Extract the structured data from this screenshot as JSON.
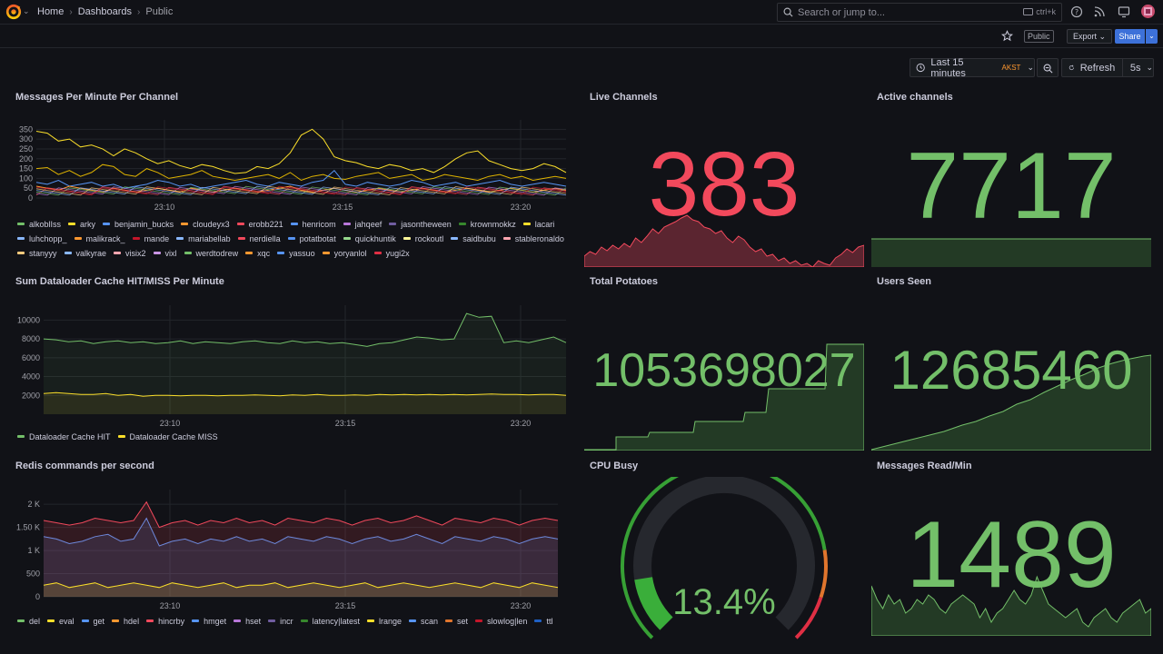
{
  "breadcrumb": [
    "Home",
    "Dashboards",
    "Public"
  ],
  "search": {
    "placeholder": "Search or jump to...",
    "shortcut": "ctrl+k"
  },
  "toolbar": {
    "public_tag": "Public",
    "export_label": "Export",
    "share_label": "Share"
  },
  "time": {
    "range": "Last 15 minutes",
    "timezone": "AKST",
    "refresh_label": "Refresh",
    "interval": "5s"
  },
  "colors": {
    "red": "#f2495c",
    "green": "#73bf69",
    "yellow": "#fade2a",
    "blue": "#5794f2",
    "bg": "#111217"
  },
  "panels": {
    "messages": {
      "title": "Messages Per Minute Per Channel",
      "legend": [
        "alkoblIss",
        "arky",
        "benjamin_bucks",
        "cloudeyx3",
        "erobb221",
        "henricom",
        "jahqeef",
        "jasontheween",
        "krownmokkz",
        "lacari",
        "luhchopp_",
        "malikrack_",
        "mande",
        "mariabellab",
        "nerdiella",
        "potatbotat",
        "quickhuntik",
        "rockoutl",
        "saidbubu",
        "stableronaldo",
        "stanyyy",
        "valkyrae",
        "visix2",
        "vixl",
        "werdtodrew",
        "xqc",
        "yassuo",
        "yoryanlol",
        "yugi2x"
      ],
      "legend_colors": [
        "#73bf69",
        "#fade2a",
        "#5794f2",
        "#ff9830",
        "#f2495c",
        "#5794f2",
        "#b877d9",
        "#705da0",
        "#37872d",
        "#fade2a",
        "#8ab8ff",
        "#ff9830",
        "#c4162a",
        "#8ab8ff",
        "#f2495c",
        "#5794f2",
        "#96d98d",
        "#fff899",
        "#8ab8ff",
        "#ffa6b0",
        "#ffcb7d",
        "#8ab8ff",
        "#ffa6b0",
        "#ca95e5",
        "#73bf69",
        "#ff9830",
        "#5794f2",
        "#ff9830",
        "#e02f44"
      ]
    },
    "dataloader": {
      "title": "Sum Dataloader Cache HIT/MISS Per Minute",
      "legend": [
        "Dataloader Cache HIT",
        "Dataloader Cache MISS"
      ]
    },
    "redis": {
      "title": "Redis commands per second",
      "legend": [
        "del",
        "eval",
        "get",
        "hdel",
        "hincrby",
        "hmget",
        "hset",
        "incr",
        "latency|latest",
        "lrange",
        "scan",
        "set",
        "slowlog|len",
        "ttl"
      ],
      "legend_colors": [
        "#73bf69",
        "#fade2a",
        "#5794f2",
        "#ff9830",
        "#f2495c",
        "#5794f2",
        "#b877d9",
        "#705da0",
        "#37872d",
        "#fade2a",
        "#5794f2",
        "#e0752d",
        "#c4162a",
        "#1f60c4"
      ]
    },
    "live": {
      "title": "Live Channels",
      "value": "383"
    },
    "active": {
      "title": "Active channels",
      "value": "7717"
    },
    "potatoes": {
      "title": "Total Potatoes",
      "value": "1053698027"
    },
    "users": {
      "title": "Users Seen",
      "value": "12685460"
    },
    "cpu": {
      "title": "CPU Busy",
      "value": "13.4%",
      "fraction": 0.134
    },
    "msgread": {
      "title": "Messages Read/Min",
      "value": "1489"
    }
  },
  "chart_data": [
    {
      "type": "line",
      "title": "Messages Per Minute Per Channel",
      "x_ticks": [
        "23:10",
        "23:15",
        "23:20"
      ],
      "y_ticks": [
        "0",
        "50",
        "100",
        "150",
        "200",
        "250",
        "300",
        "350"
      ],
      "ylim": [
        0,
        370
      ],
      "series": [
        {
          "name": "xqc",
          "values": [
            340,
            330,
            290,
            300,
            260,
            270,
            250,
            215,
            250,
            230,
            200,
            175,
            190,
            165,
            150,
            170,
            160,
            140,
            125,
            130,
            160,
            150,
            175,
            230,
            320,
            350,
            300,
            210,
            190,
            180,
            160,
            150,
            170,
            160,
            140,
            150,
            130,
            160,
            200,
            230,
            240,
            190,
            170,
            150,
            140,
            150,
            175,
            160,
            130
          ]
        },
        {
          "name": "lacari",
          "values": [
            150,
            155,
            120,
            140,
            110,
            130,
            170,
            160,
            120,
            110,
            150,
            130,
            100,
            110,
            120,
            140,
            110,
            100,
            90,
            100,
            110,
            120,
            100,
            130,
            90,
            110,
            120,
            100,
            95,
            110,
            120,
            130,
            100,
            110,
            120,
            90,
            100,
            120,
            110,
            100,
            90,
            110,
            120,
            100,
            110,
            90,
            100,
            110,
            100
          ]
        },
        {
          "name": "henricom",
          "values": [
            80,
            70,
            90,
            60,
            70,
            80,
            60,
            70,
            50,
            60,
            70,
            90,
            80,
            60,
            70,
            50,
            60,
            70,
            80,
            90,
            70,
            60,
            80,
            70,
            60,
            80,
            90,
            140,
            70,
            60,
            80,
            70,
            60,
            70,
            90,
            80,
            60,
            70,
            80,
            60,
            70,
            80,
            90,
            70,
            60,
            70,
            80,
            70,
            60
          ]
        },
        {
          "name": "krownmokkz",
          "values": [
            60,
            50,
            40,
            60,
            50,
            40,
            30,
            50,
            40,
            30,
            40,
            50,
            40,
            30,
            50,
            40,
            30,
            40,
            50,
            40,
            30,
            40,
            50,
            60,
            40,
            30,
            40,
            50,
            40,
            30,
            40,
            50,
            40,
            30,
            40,
            50,
            40,
            30,
            40,
            50,
            40,
            30,
            40,
            50,
            40,
            30,
            40,
            50,
            40
          ]
        }
      ]
    },
    {
      "type": "line",
      "title": "Sum Dataloader Cache HIT/MISS Per Minute",
      "x_ticks": [
        "23:10",
        "23:15",
        "23:20"
      ],
      "y_ticks": [
        "2000",
        "4000",
        "6000",
        "8000",
        "10000"
      ],
      "ylim": [
        0,
        11000
      ],
      "series": [
        {
          "name": "Dataloader Cache HIT",
          "values": [
            8000,
            7900,
            7700,
            7800,
            7500,
            7700,
            7800,
            7600,
            7700,
            7500,
            7600,
            7800,
            7500,
            7700,
            7600,
            7500,
            7700,
            7800,
            7600,
            7500,
            7800,
            7600,
            7700,
            7500,
            7600,
            7400,
            7200,
            7500,
            7600,
            7900,
            8200,
            8100,
            7900,
            8000,
            10700,
            10300,
            10400,
            7600,
            7800,
            7600,
            7900,
            8200,
            7600
          ]
        },
        {
          "name": "Dataloader Cache MISS",
          "values": [
            2200,
            2300,
            2200,
            2100,
            2100,
            2200,
            2000,
            2100,
            1900,
            2000,
            2000,
            1950,
            2000,
            2000,
            1950,
            2000,
            2000,
            2050,
            2000,
            1950,
            2050,
            2000,
            2100,
            2000,
            2000,
            2050,
            2000,
            2100,
            2050,
            2100,
            2050,
            2100,
            2050,
            2100,
            2050,
            2100,
            2150,
            2100,
            2100,
            2050,
            2100,
            2100,
            2000
          ]
        }
      ]
    },
    {
      "type": "area",
      "title": "Redis commands per second",
      "x_ticks": [
        "23:10",
        "23:15",
        "23:20"
      ],
      "y_ticks": [
        "0",
        "500",
        "1 K",
        "1.50 K",
        "2 K"
      ],
      "ylim": [
        0,
        2200
      ],
      "series": [
        {
          "name": "get",
          "values": [
            1300,
            1250,
            1150,
            1200,
            1300,
            1350,
            1200,
            1250,
            1700,
            1100,
            1200,
            1250,
            1150,
            1250,
            1200,
            1300,
            1200,
            1250,
            1150,
            1300,
            1250,
            1200,
            1300,
            1250,
            1150,
            1250,
            1300,
            1200,
            1250,
            1350,
            1250,
            1150,
            1300,
            1250,
            1200,
            1300,
            1250,
            1150,
            1250,
            1300,
            1250
          ]
        },
        {
          "name": "set",
          "values": [
            1650,
            1600,
            1550,
            1600,
            1700,
            1650,
            1600,
            1650,
            2050,
            1500,
            1600,
            1650,
            1550,
            1650,
            1600,
            1700,
            1600,
            1650,
            1550,
            1700,
            1650,
            1600,
            1700,
            1650,
            1550,
            1650,
            1700,
            1600,
            1650,
            1750,
            1650,
            1550,
            1700,
            1650,
            1600,
            1700,
            1650,
            1550,
            1650,
            1700,
            1650
          ]
        },
        {
          "name": "eval",
          "values": [
            250,
            300,
            200,
            250,
            300,
            200,
            250,
            300,
            250,
            200,
            300,
            250,
            200,
            250,
            300,
            200,
            250,
            250,
            300,
            200,
            250,
            300,
            250,
            200,
            250,
            300,
            200,
            250,
            300,
            250,
            200,
            250,
            300,
            250,
            200,
            300,
            250,
            200,
            300,
            250,
            200
          ]
        }
      ]
    }
  ]
}
